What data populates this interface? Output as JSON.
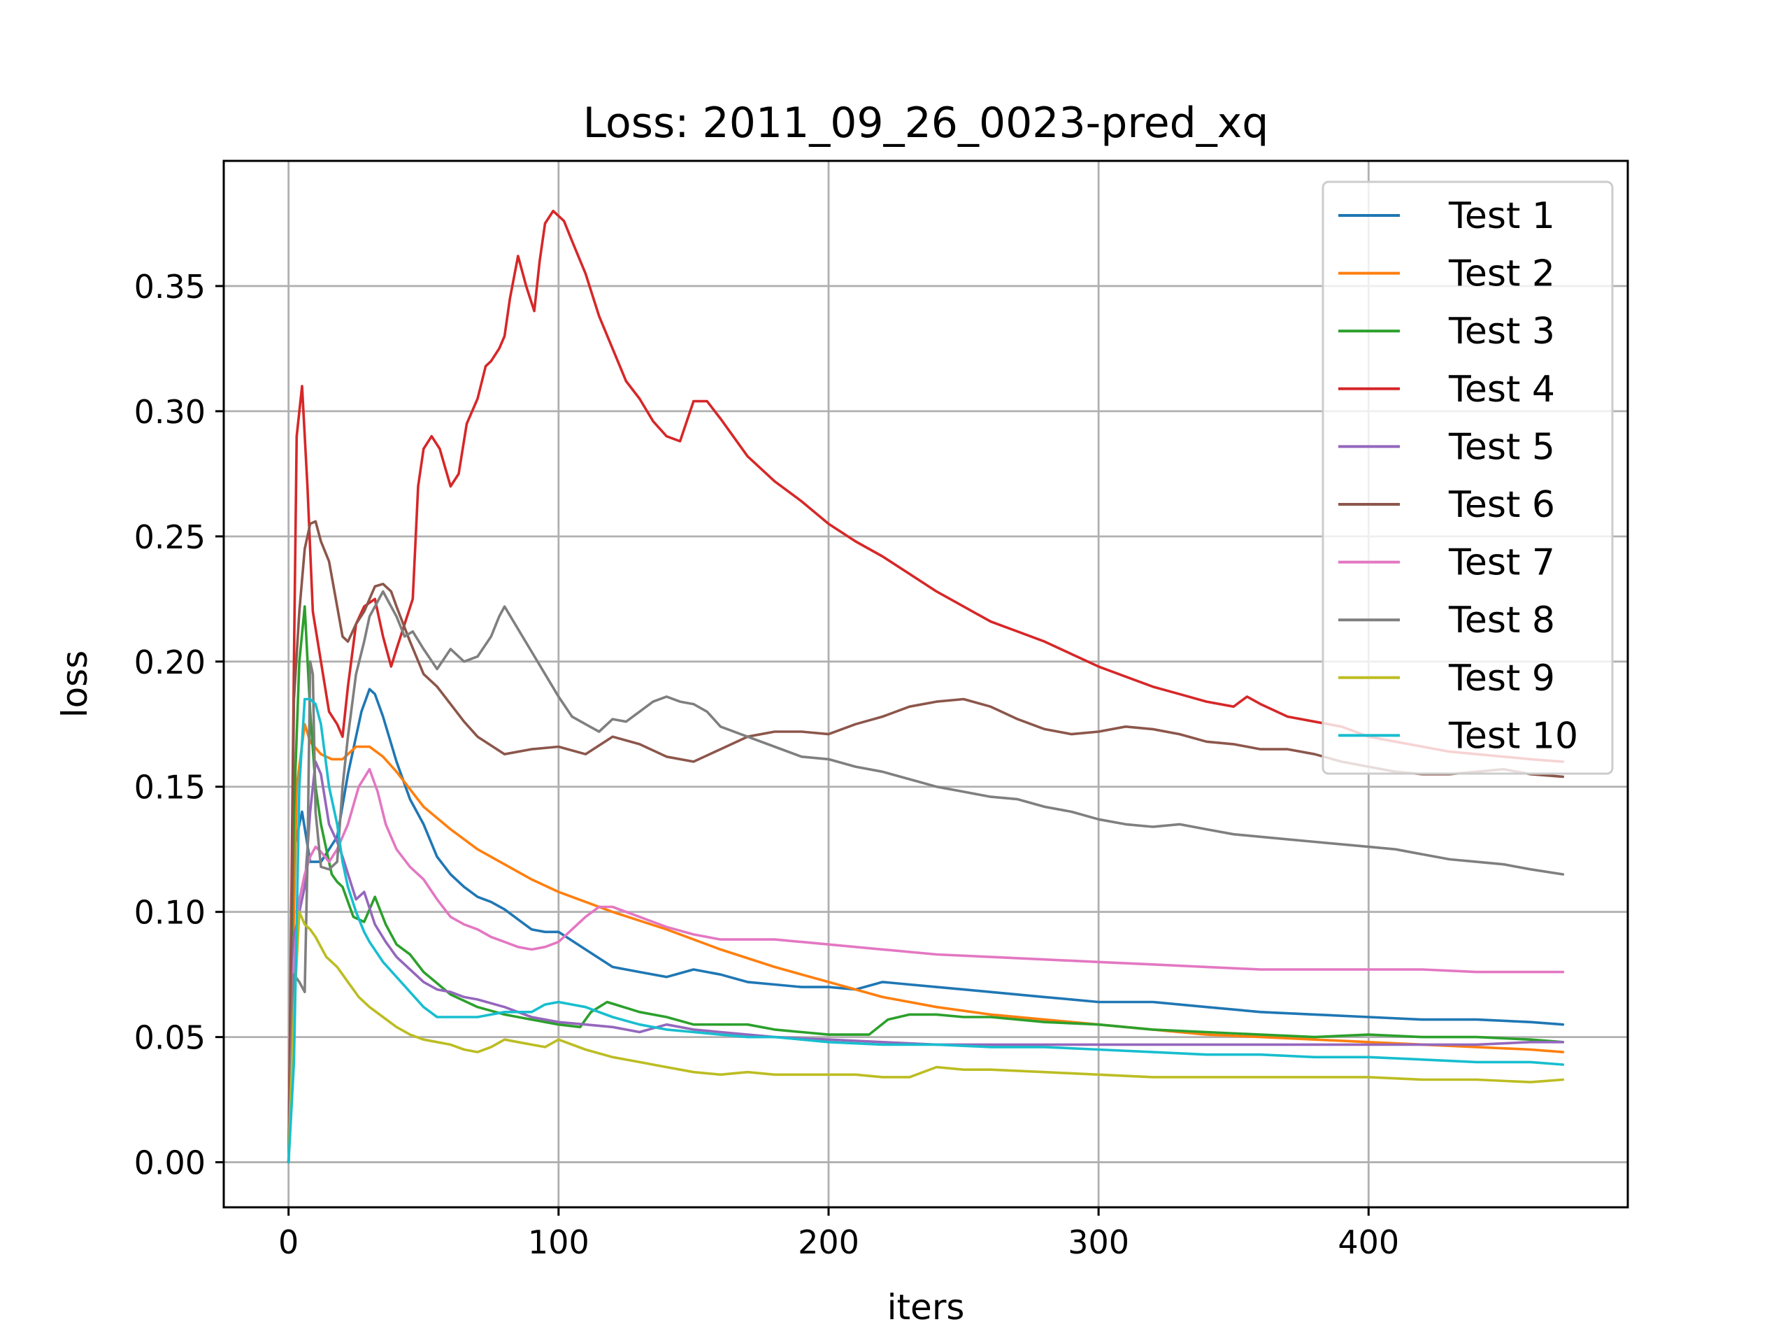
{
  "chart_data": {
    "type": "line",
    "title": "Loss: 2011_09_26_0023-pred_xq",
    "xlabel": "iters",
    "ylabel": "loss",
    "xlim": [
      -24,
      496
    ],
    "ylim": [
      -0.018,
      0.4
    ],
    "xticks": [
      0,
      100,
      200,
      300,
      400
    ],
    "xtick_labels": [
      "0",
      "100",
      "200",
      "300",
      "400"
    ],
    "yticks": [
      0.0,
      0.05,
      0.1,
      0.15,
      0.2,
      0.25,
      0.3,
      0.35
    ],
    "ytick_labels": [
      "0.00",
      "0.05",
      "0.10",
      "0.15",
      "0.20",
      "0.25",
      "0.30",
      "0.35"
    ],
    "grid": true,
    "legend_position": "top-right",
    "series": [
      {
        "name": "Test 1",
        "color": "#1f77b4",
        "x": [
          0,
          2,
          5,
          8,
          12,
          18,
          22,
          27,
          30,
          32,
          35,
          40,
          45,
          50,
          55,
          60,
          65,
          70,
          75,
          80,
          85,
          90,
          95,
          100,
          110,
          120,
          130,
          140,
          150,
          160,
          170,
          180,
          190,
          200,
          210,
          220,
          230,
          240,
          250,
          260,
          270,
          280,
          290,
          300,
          320,
          340,
          360,
          380,
          400,
          420,
          440,
          460,
          472
        ],
        "y": [
          0,
          0.125,
          0.14,
          0.12,
          0.12,
          0.13,
          0.155,
          0.18,
          0.189,
          0.187,
          0.178,
          0.16,
          0.145,
          0.135,
          0.122,
          0.115,
          0.11,
          0.106,
          0.104,
          0.101,
          0.097,
          0.093,
          0.092,
          0.092,
          0.085,
          0.078,
          0.076,
          0.074,
          0.077,
          0.075,
          0.072,
          0.071,
          0.07,
          0.07,
          0.069,
          0.072,
          0.071,
          0.07,
          0.069,
          0.068,
          0.067,
          0.066,
          0.065,
          0.064,
          0.064,
          0.062,
          0.06,
          0.059,
          0.058,
          0.057,
          0.057,
          0.056,
          0.055
        ]
      },
      {
        "name": "Test 2",
        "color": "#ff7f0e",
        "x": [
          0,
          3,
          6,
          8,
          12,
          16,
          20,
          25,
          30,
          35,
          40,
          50,
          60,
          70,
          80,
          90,
          100,
          120,
          140,
          160,
          180,
          200,
          220,
          240,
          260,
          280,
          300,
          320,
          340,
          360,
          380,
          400,
          420,
          440,
          460,
          472
        ],
        "y": [
          0,
          0.15,
          0.175,
          0.168,
          0.163,
          0.161,
          0.161,
          0.166,
          0.166,
          0.162,
          0.156,
          0.142,
          0.133,
          0.125,
          0.119,
          0.113,
          0.108,
          0.1,
          0.093,
          0.085,
          0.078,
          0.072,
          0.066,
          0.062,
          0.059,
          0.057,
          0.055,
          0.053,
          0.051,
          0.05,
          0.049,
          0.048,
          0.047,
          0.046,
          0.045,
          0.044
        ]
      },
      {
        "name": "Test 3",
        "color": "#2ca02c",
        "x": [
          0,
          2,
          4,
          6,
          8,
          10,
          12,
          14,
          16,
          18,
          20,
          24,
          28,
          32,
          36,
          40,
          45,
          50,
          60,
          70,
          80,
          90,
          100,
          108,
          112,
          118,
          130,
          140,
          150,
          160,
          170,
          180,
          190,
          200,
          210,
          215,
          222,
          230,
          240,
          250,
          260,
          270,
          280,
          300,
          320,
          340,
          360,
          380,
          400,
          420,
          440,
          460,
          472
        ],
        "y": [
          0,
          0.14,
          0.2,
          0.222,
          0.18,
          0.15,
          0.135,
          0.125,
          0.115,
          0.112,
          0.11,
          0.098,
          0.096,
          0.106,
          0.095,
          0.087,
          0.083,
          0.076,
          0.067,
          0.062,
          0.059,
          0.057,
          0.055,
          0.054,
          0.06,
          0.064,
          0.06,
          0.058,
          0.055,
          0.055,
          0.055,
          0.053,
          0.052,
          0.051,
          0.051,
          0.051,
          0.057,
          0.059,
          0.059,
          0.058,
          0.058,
          0.057,
          0.056,
          0.055,
          0.053,
          0.052,
          0.051,
          0.05,
          0.051,
          0.05,
          0.05,
          0.049,
          0.048
        ]
      },
      {
        "name": "Test 4",
        "color": "#d62728",
        "x": [
          0,
          2,
          3,
          5,
          7,
          9,
          12,
          15,
          18,
          20,
          22,
          25,
          28,
          32,
          35,
          38,
          40,
          43,
          46,
          48,
          50,
          53,
          56,
          60,
          63,
          66,
          70,
          73,
          75,
          78,
          80,
          82,
          85,
          88,
          91,
          93,
          95,
          98,
          100,
          102,
          105,
          110,
          115,
          120,
          125,
          130,
          135,
          140,
          145,
          150,
          155,
          160,
          170,
          180,
          190,
          200,
          210,
          220,
          230,
          240,
          250,
          260,
          270,
          280,
          290,
          300,
          310,
          320,
          330,
          340,
          350,
          355,
          360,
          370,
          380,
          390,
          400,
          410,
          420,
          430,
          440,
          450,
          460,
          472
        ],
        "y": [
          0,
          0.2,
          0.29,
          0.31,
          0.27,
          0.22,
          0.2,
          0.18,
          0.175,
          0.17,
          0.19,
          0.215,
          0.222,
          0.225,
          0.21,
          0.198,
          0.205,
          0.215,
          0.225,
          0.27,
          0.285,
          0.29,
          0.285,
          0.27,
          0.275,
          0.295,
          0.305,
          0.318,
          0.32,
          0.325,
          0.33,
          0.345,
          0.362,
          0.35,
          0.34,
          0.36,
          0.375,
          0.38,
          0.378,
          0.376,
          0.368,
          0.355,
          0.338,
          0.325,
          0.312,
          0.305,
          0.296,
          0.29,
          0.288,
          0.304,
          0.304,
          0.297,
          0.282,
          0.272,
          0.264,
          0.255,
          0.248,
          0.242,
          0.235,
          0.228,
          0.222,
          0.216,
          0.212,
          0.208,
          0.203,
          0.198,
          0.194,
          0.19,
          0.187,
          0.184,
          0.182,
          0.186,
          0.183,
          0.178,
          0.176,
          0.174,
          0.17,
          0.168,
          0.166,
          0.164,
          0.163,
          0.162,
          0.161,
          0.16
        ]
      },
      {
        "name": "Test 5",
        "color": "#9467bd",
        "x": [
          0,
          2,
          4,
          6,
          8,
          10,
          12,
          15,
          18,
          20,
          25,
          28,
          32,
          36,
          40,
          45,
          50,
          55,
          60,
          65,
          70,
          80,
          90,
          100,
          110,
          120,
          130,
          140,
          150,
          160,
          170,
          180,
          200,
          220,
          240,
          260,
          280,
          300,
          320,
          340,
          360,
          380,
          400,
          420,
          440,
          460,
          472
        ],
        "y": [
          0,
          0.09,
          0.1,
          0.11,
          0.14,
          0.16,
          0.155,
          0.135,
          0.128,
          0.122,
          0.105,
          0.108,
          0.095,
          0.088,
          0.082,
          0.077,
          0.072,
          0.069,
          0.068,
          0.066,
          0.065,
          0.062,
          0.058,
          0.056,
          0.055,
          0.054,
          0.052,
          0.055,
          0.053,
          0.052,
          0.051,
          0.05,
          0.049,
          0.048,
          0.047,
          0.047,
          0.047,
          0.047,
          0.047,
          0.047,
          0.047,
          0.047,
          0.047,
          0.047,
          0.047,
          0.048,
          0.048
        ]
      },
      {
        "name": "Test 6",
        "color": "#8c564b",
        "x": [
          0,
          2,
          4,
          6,
          8,
          10,
          12,
          15,
          18,
          20,
          22,
          25,
          28,
          30,
          32,
          35,
          38,
          40,
          45,
          50,
          55,
          60,
          65,
          70,
          80,
          90,
          100,
          110,
          120,
          130,
          140,
          150,
          160,
          170,
          180,
          190,
          200,
          210,
          220,
          230,
          240,
          250,
          260,
          270,
          280,
          290,
          300,
          310,
          320,
          330,
          340,
          350,
          360,
          370,
          380,
          390,
          400,
          410,
          420,
          430,
          440,
          450,
          460,
          472
        ],
        "y": [
          0,
          0.185,
          0.22,
          0.245,
          0.255,
          0.256,
          0.248,
          0.24,
          0.222,
          0.21,
          0.208,
          0.215,
          0.22,
          0.225,
          0.23,
          0.231,
          0.228,
          0.222,
          0.208,
          0.195,
          0.19,
          0.183,
          0.176,
          0.17,
          0.163,
          0.165,
          0.166,
          0.163,
          0.17,
          0.167,
          0.162,
          0.16,
          0.165,
          0.17,
          0.172,
          0.172,
          0.171,
          0.175,
          0.178,
          0.182,
          0.184,
          0.185,
          0.182,
          0.177,
          0.173,
          0.171,
          0.172,
          0.174,
          0.173,
          0.171,
          0.168,
          0.167,
          0.165,
          0.165,
          0.163,
          0.16,
          0.158,
          0.156,
          0.155,
          0.155,
          0.156,
          0.157,
          0.155,
          0.154
        ]
      },
      {
        "name": "Test 7",
        "color": "#e377c2",
        "x": [
          0,
          2,
          4,
          6,
          8,
          10,
          12,
          15,
          18,
          22,
          26,
          30,
          33,
          36,
          40,
          45,
          50,
          55,
          60,
          65,
          70,
          75,
          80,
          85,
          90,
          95,
          100,
          105,
          110,
          115,
          120,
          130,
          140,
          150,
          160,
          170,
          180,
          190,
          200,
          220,
          240,
          260,
          280,
          300,
          320,
          340,
          360,
          380,
          400,
          420,
          440,
          460,
          472
        ],
        "y": [
          0,
          0.08,
          0.105,
          0.115,
          0.122,
          0.126,
          0.124,
          0.12,
          0.125,
          0.135,
          0.15,
          0.157,
          0.148,
          0.135,
          0.125,
          0.118,
          0.113,
          0.105,
          0.098,
          0.095,
          0.093,
          0.09,
          0.088,
          0.086,
          0.085,
          0.086,
          0.088,
          0.093,
          0.098,
          0.102,
          0.102,
          0.098,
          0.094,
          0.091,
          0.089,
          0.089,
          0.089,
          0.088,
          0.087,
          0.085,
          0.083,
          0.082,
          0.081,
          0.08,
          0.079,
          0.078,
          0.077,
          0.077,
          0.077,
          0.077,
          0.076,
          0.076,
          0.076
        ]
      },
      {
        "name": "Test 8",
        "color": "#7f7f7f",
        "x": [
          0,
          2,
          4,
          6,
          7,
          8,
          9,
          10,
          12,
          15,
          18,
          20,
          22,
          25,
          28,
          30,
          32,
          35,
          38,
          40,
          43,
          46,
          50,
          55,
          60,
          65,
          70,
          75,
          78,
          80,
          85,
          90,
          95,
          100,
          105,
          110,
          115,
          120,
          125,
          130,
          135,
          140,
          145,
          150,
          155,
          160,
          170,
          180,
          190,
          200,
          210,
          220,
          230,
          240,
          250,
          260,
          270,
          280,
          290,
          300,
          310,
          320,
          330,
          340,
          350,
          360,
          370,
          380,
          390,
          400,
          410,
          420,
          430,
          440,
          450,
          460,
          472
        ],
        "y": [
          0,
          0.075,
          0.072,
          0.068,
          0.12,
          0.2,
          0.195,
          0.14,
          0.118,
          0.117,
          0.12,
          0.15,
          0.17,
          0.195,
          0.208,
          0.218,
          0.222,
          0.228,
          0.222,
          0.218,
          0.21,
          0.212,
          0.205,
          0.197,
          0.205,
          0.2,
          0.202,
          0.21,
          0.218,
          0.222,
          0.213,
          0.204,
          0.195,
          0.186,
          0.178,
          0.175,
          0.172,
          0.177,
          0.176,
          0.18,
          0.184,
          0.186,
          0.184,
          0.183,
          0.18,
          0.174,
          0.17,
          0.166,
          0.162,
          0.161,
          0.158,
          0.156,
          0.153,
          0.15,
          0.148,
          0.146,
          0.145,
          0.142,
          0.14,
          0.137,
          0.135,
          0.134,
          0.135,
          0.133,
          0.131,
          0.13,
          0.129,
          0.128,
          0.127,
          0.126,
          0.125,
          0.123,
          0.121,
          0.12,
          0.119,
          0.117,
          0.115
        ]
      },
      {
        "name": "Test 9",
        "color": "#bcbd22",
        "x": [
          0,
          2,
          4,
          6,
          8,
          10,
          14,
          18,
          22,
          26,
          30,
          35,
          40,
          45,
          50,
          55,
          60,
          65,
          70,
          75,
          80,
          85,
          90,
          95,
          100,
          110,
          120,
          130,
          140,
          150,
          160,
          170,
          180,
          190,
          200,
          210,
          220,
          230,
          240,
          250,
          260,
          280,
          300,
          320,
          340,
          360,
          380,
          400,
          420,
          440,
          460,
          472
        ],
        "y": [
          0,
          0.06,
          0.1,
          0.095,
          0.093,
          0.09,
          0.082,
          0.078,
          0.072,
          0.066,
          0.062,
          0.058,
          0.054,
          0.051,
          0.049,
          0.048,
          0.047,
          0.045,
          0.044,
          0.046,
          0.049,
          0.048,
          0.047,
          0.046,
          0.049,
          0.045,
          0.042,
          0.04,
          0.038,
          0.036,
          0.035,
          0.036,
          0.035,
          0.035,
          0.035,
          0.035,
          0.034,
          0.034,
          0.038,
          0.037,
          0.037,
          0.036,
          0.035,
          0.034,
          0.034,
          0.034,
          0.034,
          0.034,
          0.033,
          0.033,
          0.032,
          0.033
        ]
      },
      {
        "name": "Test 10",
        "color": "#17becf",
        "x": [
          0,
          2,
          4,
          6,
          8,
          10,
          12,
          15,
          18,
          20,
          22,
          25,
          28,
          30,
          35,
          40,
          45,
          50,
          55,
          60,
          70,
          80,
          90,
          95,
          100,
          105,
          110,
          120,
          130,
          140,
          150,
          160,
          170,
          180,
          190,
          200,
          220,
          240,
          260,
          280,
          300,
          320,
          340,
          360,
          380,
          400,
          420,
          440,
          460,
          472
        ],
        "y": [
          0,
          0.04,
          0.15,
          0.185,
          0.185,
          0.183,
          0.175,
          0.15,
          0.135,
          0.12,
          0.11,
          0.1,
          0.092,
          0.088,
          0.08,
          0.074,
          0.068,
          0.062,
          0.058,
          0.058,
          0.058,
          0.06,
          0.06,
          0.063,
          0.064,
          0.063,
          0.062,
          0.058,
          0.055,
          0.053,
          0.052,
          0.051,
          0.05,
          0.05,
          0.049,
          0.048,
          0.047,
          0.047,
          0.046,
          0.046,
          0.045,
          0.044,
          0.043,
          0.043,
          0.042,
          0.042,
          0.041,
          0.04,
          0.04,
          0.039
        ]
      }
    ]
  }
}
